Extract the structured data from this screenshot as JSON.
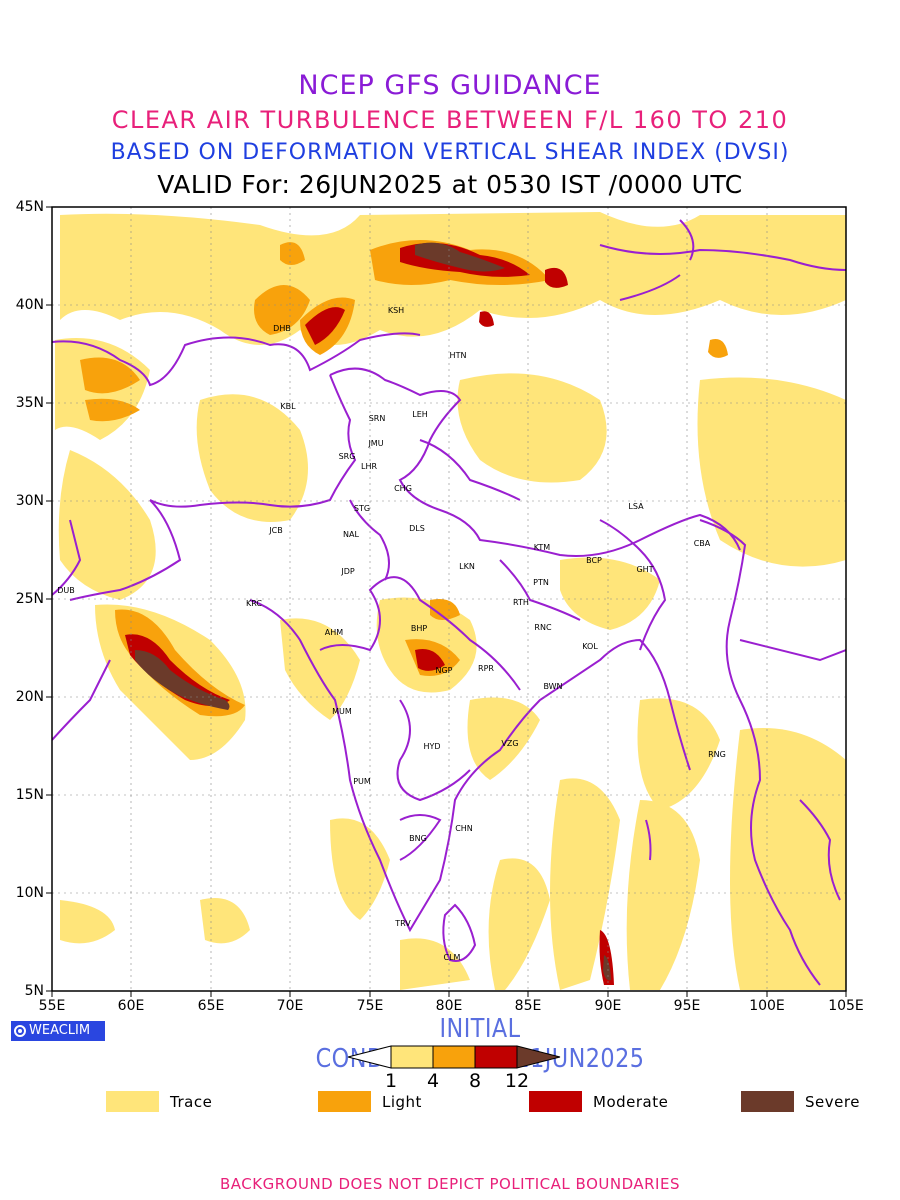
{
  "titles": {
    "line1": "NCEP GFS GUIDANCE",
    "line2": "CLEAR AIR TURBULENCE BETWEEN F/L 160 TO 210",
    "line3": "BASED ON DEFORMATION VERTICAL SHEAR INDEX (DVSI)",
    "line4": "VALID For: 26JUN2025 at 0530 IST /0000 UTC"
  },
  "axes": {
    "lat_labels": [
      "45N",
      "40N",
      "35N",
      "30N",
      "25N",
      "20N",
      "15N",
      "10N",
      "5N"
    ],
    "lon_labels": [
      "55E",
      "60E",
      "65E",
      "70E",
      "75E",
      "80E",
      "85E",
      "90E",
      "95E",
      "100E",
      "105E"
    ]
  },
  "brand": "WEACLIM",
  "initial_conditions": "INITIAL CONDITIONS:00Z21JUN2025",
  "colorbar": {
    "ticks": [
      "1",
      "4",
      "8",
      "12"
    ],
    "colors": [
      "#ffe57a",
      "#f8a20c",
      "#c00000",
      "#6b3a2a"
    ]
  },
  "legend": [
    {
      "label": "Trace",
      "color": "#ffe57a"
    },
    {
      "label": "Light",
      "color": "#f8a20c"
    },
    {
      "label": "Moderate",
      "color": "#c00000"
    },
    {
      "label": "Severe",
      "color": "#6b3a2a"
    }
  ],
  "stations": [
    "KSH",
    "HTN",
    "DHB",
    "KBL",
    "SRN",
    "LEH",
    "JMU",
    "SRG",
    "LHR",
    "CHG",
    "STG",
    "DLS",
    "JCB",
    "NAL",
    "LSA",
    "KTM",
    "BCP",
    "CBA",
    "GHT",
    "JDP",
    "LKN",
    "PTN",
    "DUB",
    "KRC",
    "RTH",
    "AHM",
    "BHP",
    "RNC",
    "KOL",
    "NGP",
    "RPR",
    "BWN",
    "MUM",
    "HYD",
    "VZG",
    "RNG",
    "PUM",
    "CHN",
    "BNG",
    "TRV",
    "CLM"
  ],
  "footer": "BACKGROUND DOES NOT DEPICT POLITICAL BOUNDARIES"
}
